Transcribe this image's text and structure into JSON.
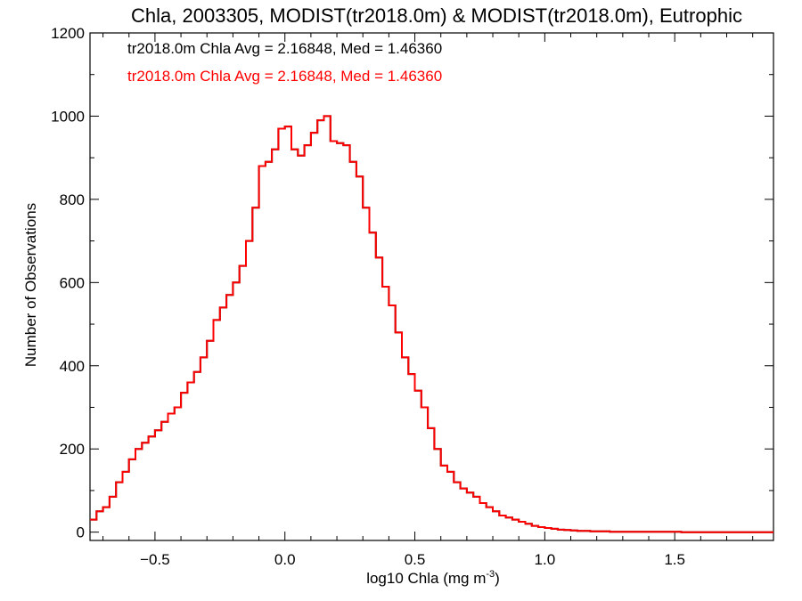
{
  "chart_data": {
    "type": "line",
    "title": "Chla, 2003305, MODIST(tr2018.0m) & MODIST(tr2018.0m), Eutrophic",
    "xlabel": "log10 Chla (mg m",
    "xlabel_sup": "-3",
    "xlabel_close": ")",
    "ylabel": "Number of Observations",
    "xlim": [
      -0.75,
      1.88
    ],
    "ylim": [
      -20,
      1200
    ],
    "xticks": [
      -0.5,
      0.0,
      0.5,
      1.0,
      1.5
    ],
    "xtick_labels": [
      "−0.5",
      "0.0",
      "0.5",
      "1.0",
      "1.5"
    ],
    "yticks": [
      0,
      200,
      400,
      600,
      800,
      1000,
      1200
    ],
    "ytick_labels": [
      "0",
      "200",
      "400",
      "600",
      "800",
      "1000",
      "1200"
    ],
    "grid": false,
    "legend_placement": "top-left",
    "series": [
      {
        "name": "tr2018.0m Chla Avg = 2.16848, Med = 1.46360",
        "color": "#000000",
        "x": [
          -0.75,
          -0.725,
          -0.7,
          -0.675,
          -0.65,
          -0.625,
          -0.6,
          -0.575,
          -0.55,
          -0.525,
          -0.5,
          -0.475,
          -0.45,
          -0.425,
          -0.4,
          -0.375,
          -0.35,
          -0.325,
          -0.3,
          -0.275,
          -0.25,
          -0.225,
          -0.2,
          -0.175,
          -0.15,
          -0.125,
          -0.1,
          -0.075,
          -0.05,
          -0.025,
          0.0,
          0.025,
          0.05,
          0.075,
          0.1,
          0.125,
          0.15,
          0.175,
          0.2,
          0.225,
          0.25,
          0.275,
          0.3,
          0.325,
          0.35,
          0.375,
          0.4,
          0.425,
          0.45,
          0.475,
          0.5,
          0.525,
          0.55,
          0.575,
          0.6,
          0.625,
          0.65,
          0.675,
          0.7,
          0.725,
          0.75,
          0.775,
          0.8,
          0.825,
          0.85,
          0.875,
          0.9,
          0.925,
          0.95,
          0.975,
          1.0,
          1.025,
          1.05,
          1.075,
          1.1,
          1.125,
          1.15,
          1.175,
          1.2,
          1.225,
          1.25,
          1.275,
          1.3,
          1.325,
          1.35,
          1.375,
          1.4,
          1.425,
          1.45,
          1.475,
          1.5,
          1.525,
          1.55,
          1.575,
          1.6,
          1.625,
          1.65,
          1.675,
          1.7,
          1.725,
          1.75,
          1.775,
          1.8,
          1.825,
          1.85,
          1.875
        ],
        "y": [
          30,
          50,
          60,
          85,
          120,
          145,
          175,
          200,
          215,
          230,
          245,
          265,
          285,
          300,
          335,
          360,
          385,
          420,
          460,
          510,
          540,
          570,
          600,
          640,
          700,
          780,
          880,
          890,
          920,
          970,
          975,
          920,
          905,
          930,
          960,
          990,
          1000,
          940,
          935,
          930,
          890,
          855,
          780,
          720,
          660,
          590,
          545,
          480,
          420,
          380,
          340,
          300,
          250,
          200,
          160,
          145,
          120,
          105,
          95,
          85,
          70,
          60,
          50,
          40,
          35,
          30,
          25,
          20,
          15,
          12,
          10,
          8,
          6,
          5,
          4,
          3,
          3,
          2,
          2,
          2,
          1,
          1,
          1,
          1,
          1,
          1,
          1,
          1,
          1,
          1,
          1,
          0,
          0,
          0,
          0,
          0,
          0,
          0,
          0,
          0,
          0,
          0,
          0,
          0,
          0,
          0
        ]
      },
      {
        "name": "tr2018.0m Chla Avg = 2.16848, Med = 1.46360",
        "color": "#ff0000",
        "x": [
          -0.75,
          -0.725,
          -0.7,
          -0.675,
          -0.65,
          -0.625,
          -0.6,
          -0.575,
          -0.55,
          -0.525,
          -0.5,
          -0.475,
          -0.45,
          -0.425,
          -0.4,
          -0.375,
          -0.35,
          -0.325,
          -0.3,
          -0.275,
          -0.25,
          -0.225,
          -0.2,
          -0.175,
          -0.15,
          -0.125,
          -0.1,
          -0.075,
          -0.05,
          -0.025,
          0.0,
          0.025,
          0.05,
          0.075,
          0.1,
          0.125,
          0.15,
          0.175,
          0.2,
          0.225,
          0.25,
          0.275,
          0.3,
          0.325,
          0.35,
          0.375,
          0.4,
          0.425,
          0.45,
          0.475,
          0.5,
          0.525,
          0.55,
          0.575,
          0.6,
          0.625,
          0.65,
          0.675,
          0.7,
          0.725,
          0.75,
          0.775,
          0.8,
          0.825,
          0.85,
          0.875,
          0.9,
          0.925,
          0.95,
          0.975,
          1.0,
          1.025,
          1.05,
          1.075,
          1.1,
          1.125,
          1.15,
          1.175,
          1.2,
          1.225,
          1.25,
          1.275,
          1.3,
          1.325,
          1.35,
          1.375,
          1.4,
          1.425,
          1.45,
          1.475,
          1.5,
          1.525,
          1.55,
          1.575,
          1.6,
          1.625,
          1.65,
          1.675,
          1.7,
          1.725,
          1.75,
          1.775,
          1.8,
          1.825,
          1.85,
          1.875
        ],
        "y": [
          30,
          50,
          60,
          85,
          120,
          145,
          175,
          200,
          215,
          230,
          245,
          265,
          285,
          300,
          335,
          360,
          385,
          420,
          460,
          510,
          540,
          570,
          600,
          640,
          700,
          780,
          880,
          890,
          920,
          970,
          975,
          920,
          905,
          930,
          960,
          990,
          1000,
          940,
          935,
          930,
          890,
          855,
          780,
          720,
          660,
          590,
          545,
          480,
          420,
          380,
          340,
          300,
          250,
          200,
          160,
          145,
          120,
          105,
          95,
          85,
          70,
          60,
          50,
          40,
          35,
          30,
          25,
          20,
          15,
          12,
          10,
          8,
          6,
          5,
          4,
          3,
          3,
          2,
          2,
          2,
          1,
          1,
          1,
          1,
          1,
          1,
          1,
          1,
          1,
          1,
          1,
          0,
          0,
          0,
          0,
          0,
          0,
          0,
          0,
          0,
          0,
          0,
          0,
          0,
          0,
          0
        ]
      }
    ]
  }
}
